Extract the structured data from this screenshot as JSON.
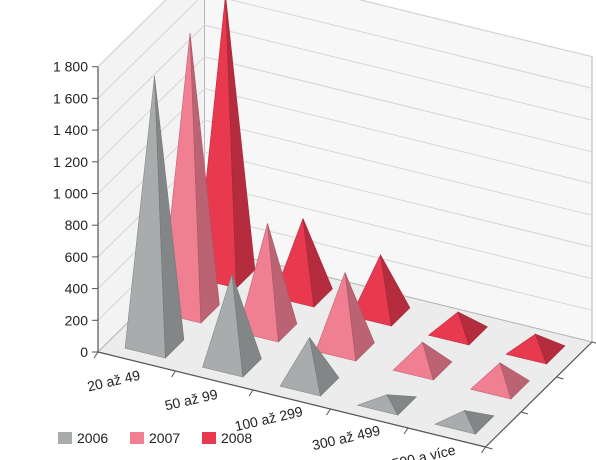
{
  "chart_data": {
    "type": "bar",
    "variant": "3d-pyramid",
    "categories": [
      "20 až 49",
      "50 až 99",
      "100 až 299",
      "300 až 499",
      "500 a více"
    ],
    "series": [
      {
        "name": "2006",
        "values": [
          1690,
          560,
          280,
          40,
          60
        ],
        "color": "#a8acac"
      },
      {
        "name": "2007",
        "values": [
          1740,
          660,
          470,
          150,
          140
        ],
        "color": "#f07f92"
      },
      {
        "name": "2008",
        "values": [
          1760,
          470,
          360,
          120,
          100
        ],
        "color": "#e8394f"
      }
    ],
    "ylim": [
      0,
      1800
    ],
    "yticks": [
      "0",
      "200",
      "400",
      "600",
      "800",
      "1 000",
      "1 200",
      "1 400",
      "1 600",
      "1 800"
    ],
    "legend_position": "bottom-left",
    "grid": true,
    "title": "",
    "xlabel": "",
    "ylabel": ""
  }
}
